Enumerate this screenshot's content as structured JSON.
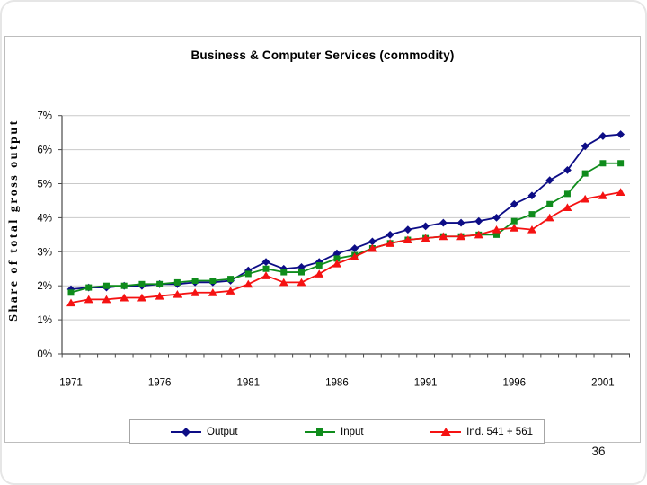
{
  "slide": {
    "page_number": "36"
  },
  "chart_data": {
    "type": "line",
    "title": "Business & Computer Services (commodity)",
    "xlabel": "",
    "ylabel": "Share of total gross output",
    "ylim": [
      0,
      7
    ],
    "grid": true,
    "legend_position": "bottom",
    "y_ticks": [
      "0%",
      "1%",
      "2%",
      "3%",
      "4%",
      "5%",
      "6%",
      "7%"
    ],
    "x_tick_labels": [
      "1971",
      "1976",
      "1981",
      "1986",
      "1991",
      "1996",
      "2001"
    ],
    "x": [
      1971,
      1972,
      1973,
      1974,
      1975,
      1976,
      1977,
      1978,
      1979,
      1980,
      1981,
      1982,
      1983,
      1984,
      1985,
      1986,
      1987,
      1988,
      1989,
      1990,
      1991,
      1992,
      1993,
      1994,
      1995,
      1996,
      1997,
      1998,
      1999,
      2000,
      2001,
      2002
    ],
    "series": [
      {
        "name": "Output",
        "marker": "diamond",
        "color": "#0d0d86",
        "values": [
          1.9,
          1.95,
          1.95,
          2.0,
          2.0,
          2.05,
          2.05,
          2.1,
          2.1,
          2.15,
          2.45,
          2.7,
          2.5,
          2.55,
          2.7,
          2.95,
          3.1,
          3.3,
          3.5,
          3.65,
          3.75,
          3.85,
          3.85,
          3.9,
          4.0,
          4.4,
          4.65,
          5.1,
          5.4,
          6.1,
          6.4,
          6.45
        ]
      },
      {
        "name": "Input",
        "marker": "square",
        "color": "#0f8c1c",
        "values": [
          1.8,
          1.95,
          2.0,
          2.0,
          2.05,
          2.05,
          2.1,
          2.15,
          2.15,
          2.2,
          2.35,
          2.5,
          2.4,
          2.4,
          2.6,
          2.8,
          2.9,
          3.1,
          3.25,
          3.35,
          3.4,
          3.45,
          3.45,
          3.5,
          3.5,
          3.9,
          4.1,
          4.4,
          4.7,
          5.3,
          5.6,
          5.6
        ]
      },
      {
        "name": "Ind. 541 + 561",
        "marker": "triangle",
        "color": "#f51212",
        "values": [
          1.5,
          1.6,
          1.6,
          1.65,
          1.65,
          1.7,
          1.75,
          1.8,
          1.8,
          1.85,
          2.05,
          2.3,
          2.1,
          2.1,
          2.35,
          2.65,
          2.85,
          3.1,
          3.25,
          3.35,
          3.4,
          3.45,
          3.45,
          3.5,
          3.65,
          3.7,
          3.65,
          4.0,
          4.3,
          4.55,
          4.65,
          4.75
        ]
      }
    ],
    "colors": {
      "gridline": "#c9c9c9",
      "axis": "#4a4a4a",
      "frame_border": "#bdbdbd"
    }
  }
}
